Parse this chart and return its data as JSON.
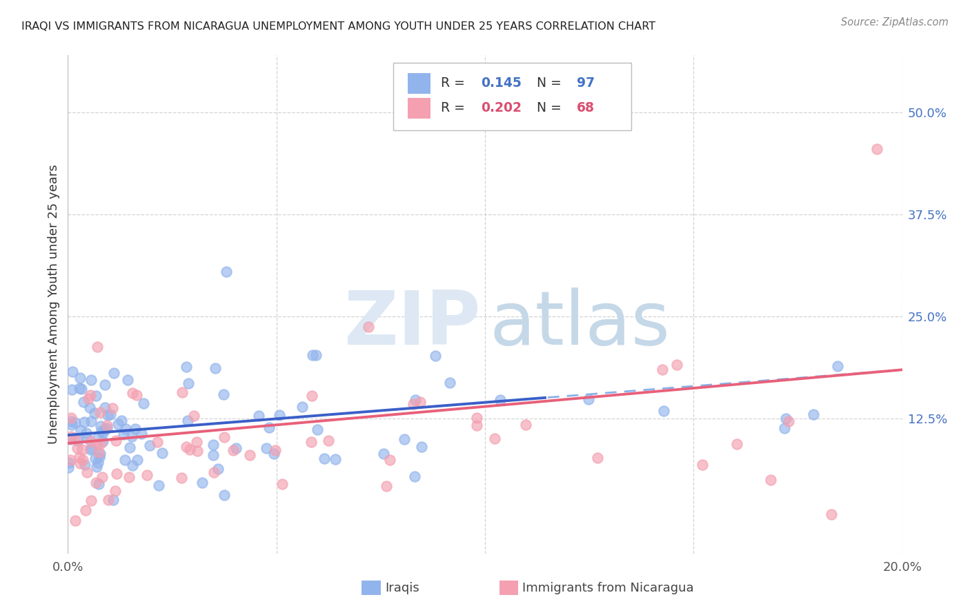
{
  "title": "IRAQI VS IMMIGRANTS FROM NICARAGUA UNEMPLOYMENT AMONG YOUTH UNDER 25 YEARS CORRELATION CHART",
  "source": "Source: ZipAtlas.com",
  "ylabel": "Unemployment Among Youth under 25 years",
  "xlim": [
    0.0,
    0.2
  ],
  "ylim": [
    -0.04,
    0.57
  ],
  "xtick_positions": [
    0.0,
    0.05,
    0.1,
    0.15,
    0.2
  ],
  "xtick_labels": [
    "0.0%",
    "",
    "",
    "",
    "20.0%"
  ],
  "ytick_vals": [
    0.125,
    0.25,
    0.375,
    0.5
  ],
  "ytick_labels": [
    "12.5%",
    "25.0%",
    "37.5%",
    "50.0%"
  ],
  "legend_R1": "0.145",
  "legend_N1": "97",
  "legend_R2": "0.202",
  "legend_N2": "68",
  "color_iraqi": "#92b4ec",
  "color_nicaragua": "#f4a0b0",
  "color_iraqi_line": "#3a5fc8",
  "color_nicaragua_line": "#e8607a",
  "color_iraqi_dash": "#8ab0e8",
  "color_blue_text": "#4472c4",
  "color_pink_text": "#d94f70",
  "background_color": "#ffffff",
  "grid_color": "#c8c8c8",
  "watermark_zip_color": "#dde8f4",
  "watermark_atlas_color": "#c5d8e8"
}
